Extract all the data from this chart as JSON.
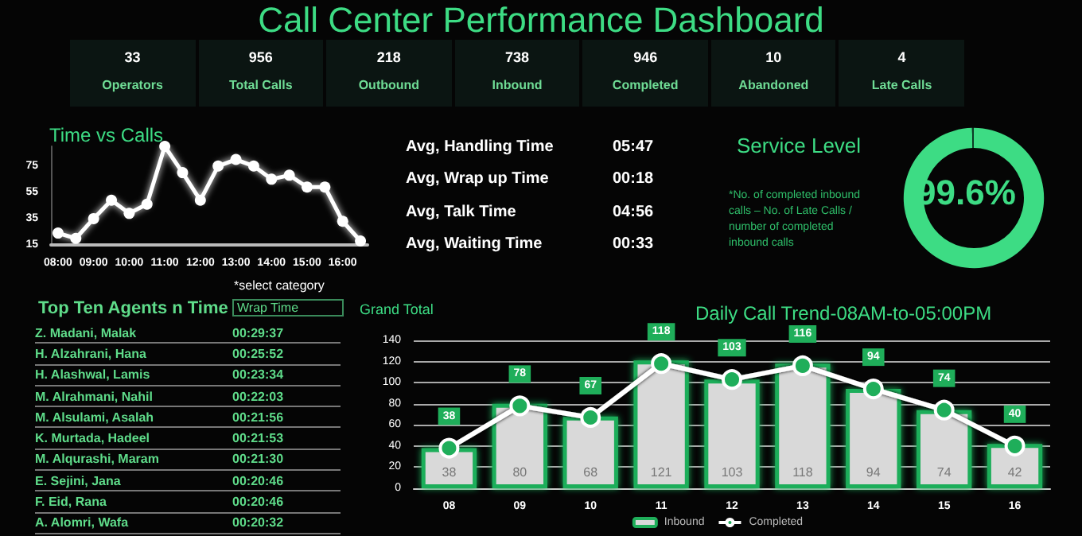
{
  "chart_data": [
    {
      "type": "other",
      "title": "Call Center Performance Dashboard",
      "categories": [
        "Operators",
        "Total Calls",
        "Outbound",
        "Inbound",
        "Completed",
        "Abandoned",
        "Late Calls"
      ],
      "values": [
        33,
        956,
        218,
        738,
        946,
        10,
        4
      ],
      "data_labels": true
    },
    {
      "type": "line",
      "title": "Time vs Calls",
      "x": [
        8,
        8.5,
        9,
        9.5,
        10,
        10.5,
        11,
        11.5,
        12,
        12.5,
        13,
        13.5,
        14,
        14.5,
        15,
        15.5,
        16,
        16.5
      ],
      "values": [
        24,
        20,
        35,
        49,
        39,
        46,
        90,
        70,
        49,
        75,
        80,
        75,
        65,
        68,
        59,
        59,
        33,
        18
      ],
      "color": "#ffffff",
      "marker": "circle",
      "xlim": [
        7.8,
        16.7
      ],
      "xticks": [
        {
          "value": 8,
          "label": "08:00"
        },
        {
          "value": 9,
          "label": "09:00"
        },
        {
          "value": 10,
          "label": "10:00"
        },
        {
          "value": 11,
          "label": "11:00"
        },
        {
          "value": 12,
          "label": "12:00"
        },
        {
          "value": 13,
          "label": "13:00"
        },
        {
          "value": 14,
          "label": "14:00"
        },
        {
          "value": 15,
          "label": "15:00"
        },
        {
          "value": 16,
          "label": "16:00"
        }
      ],
      "ylim": [
        15,
        90
      ],
      "yticks": [
        15,
        35,
        55,
        75
      ]
    },
    {
      "type": "other",
      "categories": [
        "Avg, Handling Time",
        "Avg, Wrap up Time",
        "Avg, Talk Time",
        "Avg, Waiting Time"
      ],
      "value_labels": [
        "05:47",
        "00:18",
        "04:56",
        "00:33"
      ]
    },
    {
      "type": "donut",
      "title": "Service Level",
      "categories": [
        null,
        null
      ],
      "values": [
        99.6,
        0.4
      ],
      "colors": [
        "#3ddc84",
        "#0d3a26"
      ],
      "value_labels": [
        "99.6%",
        null
      ],
      "annotations": [
        "*No. of completed inbound calls – No. of Late Calls / number of completed inbound calls"
      ]
    },
    {
      "type": "other",
      "title": "Top Ten Agents n Time",
      "annotations": [
        "*select category",
        "Wrap Time"
      ],
      "categories": [
        "Z. Madani, Malak",
        "H. Alzahrani, Hana",
        "H. Alashwal, Lamis",
        "M. Alrahmani, Nahil",
        "M. Alsulami, Asalah",
        "K. Murtada, Hadeel",
        "M. Alqurashi, Maram",
        "E. Sejini, Jana",
        "F. Eid, Rana",
        "A. Alomri, Wafa"
      ],
      "value_labels": [
        "00:29:37",
        "00:25:52",
        "00:23:34",
        "00:22:03",
        "00:21:56",
        "00:21:53",
        "00:21:30",
        "00:20:46",
        "00:20:46",
        "00:20:32"
      ]
    },
    {
      "type": "bar",
      "title": "Daily Call Trend-08AM-to-05:00PM",
      "annotations": [
        "Grand Total"
      ],
      "categories": [
        "08",
        "09",
        "10",
        "11",
        "12",
        "13",
        "14",
        "15",
        "16"
      ],
      "series": [
        {
          "name": "Inbound",
          "type": "bar",
          "color": "#d9d9d9",
          "values": [
            38,
            80,
            68,
            121,
            103,
            118,
            94,
            74,
            42
          ]
        },
        {
          "name": "Completed",
          "type": "line",
          "color": "#1fae5a",
          "marker": "circle",
          "values": [
            38,
            78,
            67,
            118,
            103,
            116,
            94,
            74,
            40
          ]
        }
      ],
      "ylim": [
        0,
        140
      ],
      "yticks": [
        0,
        20,
        40,
        60,
        80,
        100,
        120,
        140
      ],
      "grid": "y",
      "legend": "bottom",
      "data_labels": true
    }
  ]
}
